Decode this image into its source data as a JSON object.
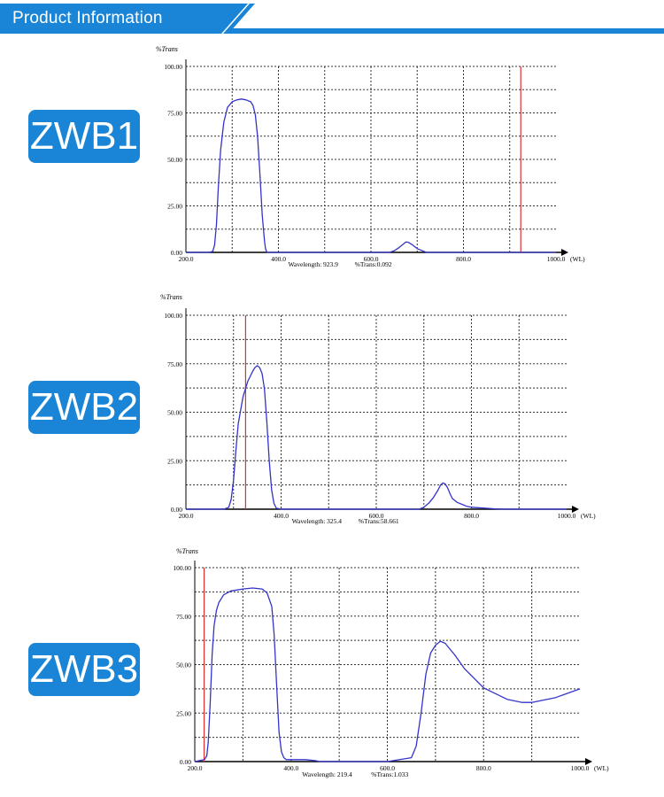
{
  "header": {
    "title": "Product Information",
    "colors": {
      "band": "#1a85d6",
      "band_dark": "#0f6fb8",
      "accent_line": "#5aa8e6"
    }
  },
  "colors": {
    "curve": "#3333cc",
    "marker": "#e03030",
    "grid": "#333333",
    "badge": "#1a85d6"
  },
  "chart_data": [
    {
      "type": "line",
      "badge": "ZWB1",
      "ylabel": "%Trans",
      "xunit": "(WL)",
      "xlim": [
        200,
        1000
      ],
      "ylim": [
        0,
        100
      ],
      "xtick_labels": [
        "200.0",
        "400.0",
        "600.0",
        "800.0",
        "1000.0"
      ],
      "ytick_labels": [
        "0.00",
        "25.00",
        "50.00",
        "75.00",
        "100.00"
      ],
      "grid": true,
      "marker_x": 923.9,
      "readout": {
        "wavelength": "Wavelength: 923.9",
        "trans": "%Trans:0.092"
      },
      "series": [
        {
          "x": [
            200,
            250,
            258,
            262,
            266,
            270,
            275,
            282,
            290,
            300,
            310,
            320,
            330,
            340,
            345,
            350,
            355,
            360,
            365,
            370,
            372,
            375,
            400,
            500,
            600,
            640,
            650,
            660,
            670,
            675,
            680,
            690,
            700,
            720,
            800,
            900,
            1000
          ],
          "y": [
            0,
            0,
            0.5,
            4,
            15,
            35,
            55,
            70,
            78,
            81,
            82,
            82.5,
            82,
            81,
            79,
            74,
            62,
            42,
            20,
            6,
            2,
            0,
            0,
            0,
            0,
            0,
            0.8,
            2.5,
            4.5,
            5.5,
            5.5,
            4,
            2,
            0,
            0,
            0,
            0
          ]
        }
      ]
    },
    {
      "type": "line",
      "badge": "ZWB2",
      "ylabel": "%Trans",
      "xunit": "(WL)",
      "xlim": [
        200,
        1000
      ],
      "ylim": [
        0,
        100
      ],
      "xtick_labels": [
        "200.0",
        "400.0",
        "600.0",
        "800.0",
        "1000.0"
      ],
      "ytick_labels": [
        "0.00",
        "25.00",
        "50.00",
        "75.00",
        "100.00"
      ],
      "grid": true,
      "marker_x": 325.4,
      "readout": {
        "wavelength": "Wavelength: 325.4",
        "trans": "%Trans:58.661"
      },
      "series": [
        {
          "x": [
            200,
            280,
            290,
            295,
            300,
            305,
            310,
            320,
            330,
            340,
            345,
            350,
            355,
            360,
            365,
            370,
            375,
            380,
            385,
            390,
            400,
            500,
            600,
            690,
            700,
            710,
            720,
            730,
            735,
            740,
            745,
            750,
            755,
            760,
            770,
            780,
            790,
            800,
            830,
            850,
            870,
            1000
          ],
          "y": [
            0,
            0,
            1,
            5,
            15,
            30,
            44,
            58,
            66,
            71,
            73,
            74,
            73,
            70,
            62,
            45,
            25,
            10,
            3,
            0.5,
            0,
            0,
            0,
            0,
            1,
            3,
            6,
            10,
            12.5,
            13.5,
            13,
            11,
            8,
            5.5,
            3.5,
            2.5,
            1.5,
            1,
            0.5,
            0.2,
            0,
            0
          ]
        }
      ]
    },
    {
      "type": "line",
      "badge": "ZWB3",
      "ylabel": "%Trans",
      "xunit": "(WL)",
      "xlim": [
        200,
        1000
      ],
      "ylim": [
        0,
        100
      ],
      "xtick_labels": [
        "200.0",
        "400.0",
        "600.0",
        "800.0",
        "1000.0"
      ],
      "ytick_labels": [
        "0.00",
        "25.00",
        "50.00",
        "75.00",
        "100.00"
      ],
      "grid": true,
      "marker_x": 219.4,
      "readout": {
        "wavelength": "Wavelength: 219.4",
        "trans": "%Trans:1.033"
      },
      "series": [
        {
          "x": [
            200,
            220,
            225,
            228,
            232,
            236,
            240,
            245,
            250,
            260,
            275,
            300,
            320,
            340,
            350,
            360,
            365,
            370,
            375,
            380,
            385,
            390,
            400,
            430,
            450,
            460,
            600,
            650,
            660,
            670,
            680,
            690,
            700,
            710,
            720,
            730,
            740,
            760,
            800,
            850,
            880,
            900,
            950,
            1000
          ],
          "y": [
            0,
            1,
            3,
            10,
            30,
            55,
            70,
            78,
            82,
            86,
            88,
            89,
            89.5,
            89,
            87,
            80,
            65,
            40,
            15,
            5,
            2,
            1,
            1,
            1,
            0.5,
            0,
            0,
            2,
            8,
            25,
            45,
            56,
            60,
            62,
            61,
            58,
            55,
            48,
            38,
            32,
            30.5,
            30.5,
            33,
            37.5
          ]
        }
      ]
    }
  ]
}
